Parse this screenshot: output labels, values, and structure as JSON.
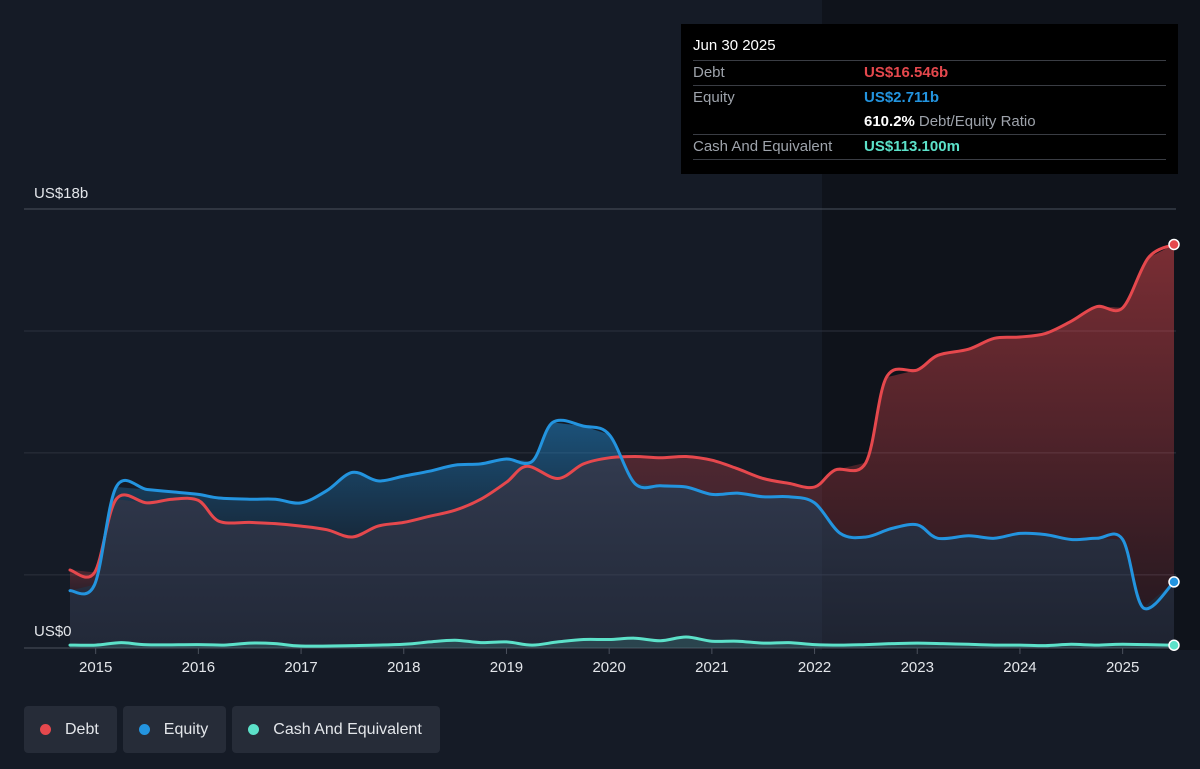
{
  "chart_data": {
    "type": "area",
    "y_axis": {
      "top_label": "US$18b",
      "bottom_label": "US$0",
      "ylim": [
        0,
        18
      ]
    },
    "x_ticks": [
      "2015",
      "2016",
      "2017",
      "2018",
      "2019",
      "2020",
      "2021",
      "2022",
      "2023",
      "2024",
      "2025"
    ],
    "x_range": [
      2014.75,
      2025.5
    ],
    "grid": true,
    "legend_position": "bottom-left",
    "series": [
      {
        "name": "Debt",
        "color": "#e5484d",
        "points": [
          [
            2014.75,
            3.2
          ],
          [
            2014.99,
            3.1
          ],
          [
            2015.2,
            6.1
          ],
          [
            2015.5,
            5.95
          ],
          [
            2015.75,
            6.1
          ],
          [
            2016.0,
            6.05
          ],
          [
            2016.2,
            5.2
          ],
          [
            2016.5,
            5.15
          ],
          [
            2016.75,
            5.1
          ],
          [
            2017.0,
            5.0
          ],
          [
            2017.25,
            4.85
          ],
          [
            2017.5,
            4.55
          ],
          [
            2017.75,
            5.0
          ],
          [
            2018.0,
            5.15
          ],
          [
            2018.25,
            5.4
          ],
          [
            2018.5,
            5.65
          ],
          [
            2018.75,
            6.1
          ],
          [
            2019.0,
            6.8
          ],
          [
            2019.2,
            7.45
          ],
          [
            2019.5,
            6.95
          ],
          [
            2019.75,
            7.55
          ],
          [
            2020.0,
            7.8
          ],
          [
            2020.25,
            7.85
          ],
          [
            2020.5,
            7.8
          ],
          [
            2020.75,
            7.85
          ],
          [
            2021.0,
            7.7
          ],
          [
            2021.25,
            7.35
          ],
          [
            2021.5,
            6.95
          ],
          [
            2021.75,
            6.75
          ],
          [
            2022.0,
            6.6
          ],
          [
            2022.2,
            7.3
          ],
          [
            2022.5,
            7.6
          ],
          [
            2022.7,
            11.1
          ],
          [
            2023.0,
            11.4
          ],
          [
            2023.2,
            12.0
          ],
          [
            2023.5,
            12.25
          ],
          [
            2023.75,
            12.7
          ],
          [
            2024.0,
            12.75
          ],
          [
            2024.25,
            12.9
          ],
          [
            2024.5,
            13.4
          ],
          [
            2024.75,
            14.0
          ],
          [
            2025.0,
            13.95
          ],
          [
            2025.25,
            16.0
          ],
          [
            2025.5,
            16.546
          ]
        ]
      },
      {
        "name": "Equity",
        "color": "#2394df",
        "points": [
          [
            2014.75,
            2.35
          ],
          [
            2014.99,
            2.6
          ],
          [
            2015.2,
            6.6
          ],
          [
            2015.5,
            6.5
          ],
          [
            2015.75,
            6.4
          ],
          [
            2016.0,
            6.3
          ],
          [
            2016.2,
            6.15
          ],
          [
            2016.5,
            6.1
          ],
          [
            2016.75,
            6.1
          ],
          [
            2017.0,
            5.95
          ],
          [
            2017.25,
            6.45
          ],
          [
            2017.5,
            7.2
          ],
          [
            2017.75,
            6.85
          ],
          [
            2018.0,
            7.05
          ],
          [
            2018.25,
            7.25
          ],
          [
            2018.5,
            7.5
          ],
          [
            2018.75,
            7.55
          ],
          [
            2019.0,
            7.75
          ],
          [
            2019.25,
            7.65
          ],
          [
            2019.45,
            9.25
          ],
          [
            2019.75,
            9.1
          ],
          [
            2020.0,
            8.75
          ],
          [
            2020.25,
            6.75
          ],
          [
            2020.5,
            6.65
          ],
          [
            2020.75,
            6.6
          ],
          [
            2021.0,
            6.3
          ],
          [
            2021.25,
            6.35
          ],
          [
            2021.5,
            6.2
          ],
          [
            2021.75,
            6.2
          ],
          [
            2022.0,
            5.95
          ],
          [
            2022.25,
            4.7
          ],
          [
            2022.5,
            4.55
          ],
          [
            2022.75,
            4.9
          ],
          [
            2023.0,
            5.05
          ],
          [
            2023.2,
            4.5
          ],
          [
            2023.5,
            4.6
          ],
          [
            2023.75,
            4.5
          ],
          [
            2024.0,
            4.7
          ],
          [
            2024.25,
            4.65
          ],
          [
            2024.5,
            4.45
          ],
          [
            2024.75,
            4.5
          ],
          [
            2025.0,
            4.45
          ],
          [
            2025.2,
            1.65
          ],
          [
            2025.5,
            2.711
          ]
        ]
      },
      {
        "name": "Cash And Equivalent",
        "color": "#5ce1c9",
        "points": [
          [
            2014.75,
            0.12
          ],
          [
            2015.0,
            0.12
          ],
          [
            2015.25,
            0.22
          ],
          [
            2015.5,
            0.13
          ],
          [
            2016.0,
            0.14
          ],
          [
            2016.25,
            0.12
          ],
          [
            2016.5,
            0.2
          ],
          [
            2016.75,
            0.18
          ],
          [
            2017.0,
            0.08
          ],
          [
            2017.5,
            0.1
          ],
          [
            2018.0,
            0.15
          ],
          [
            2018.25,
            0.25
          ],
          [
            2018.5,
            0.32
          ],
          [
            2018.75,
            0.22
          ],
          [
            2019.0,
            0.25
          ],
          [
            2019.25,
            0.12
          ],
          [
            2019.5,
            0.25
          ],
          [
            2019.75,
            0.35
          ],
          [
            2020.0,
            0.35
          ],
          [
            2020.25,
            0.4
          ],
          [
            2020.5,
            0.3
          ],
          [
            2020.75,
            0.45
          ],
          [
            2021.0,
            0.28
          ],
          [
            2021.25,
            0.28
          ],
          [
            2021.5,
            0.2
          ],
          [
            2021.75,
            0.22
          ],
          [
            2022.0,
            0.14
          ],
          [
            2022.25,
            0.12
          ],
          [
            2022.5,
            0.14
          ],
          [
            2022.75,
            0.18
          ],
          [
            2023.0,
            0.2
          ],
          [
            2023.25,
            0.18
          ],
          [
            2023.5,
            0.15
          ],
          [
            2023.75,
            0.12
          ],
          [
            2024.0,
            0.12
          ],
          [
            2024.25,
            0.1
          ],
          [
            2024.5,
            0.15
          ],
          [
            2024.75,
            0.12
          ],
          [
            2025.0,
            0.15
          ],
          [
            2025.5,
            0.1131
          ]
        ]
      }
    ]
  },
  "tooltip": {
    "date": "Jun 30 2025",
    "debt_label": "Debt",
    "debt_value": "US$16.546b",
    "equity_label": "Equity",
    "equity_value": "US$2.711b",
    "ratio_value": "610.2%",
    "ratio_label": "Debt/Equity Ratio",
    "cash_label": "Cash And Equivalent",
    "cash_value": "US$113.100m"
  },
  "legend": [
    {
      "label": "Debt",
      "color": "#e5484d"
    },
    {
      "label": "Equity",
      "color": "#2394df"
    },
    {
      "label": "Cash And Equivalent",
      "color": "#5ce1c9"
    }
  ],
  "colors": {
    "background": "#151b26",
    "forecast_panel": "#0f131b"
  }
}
